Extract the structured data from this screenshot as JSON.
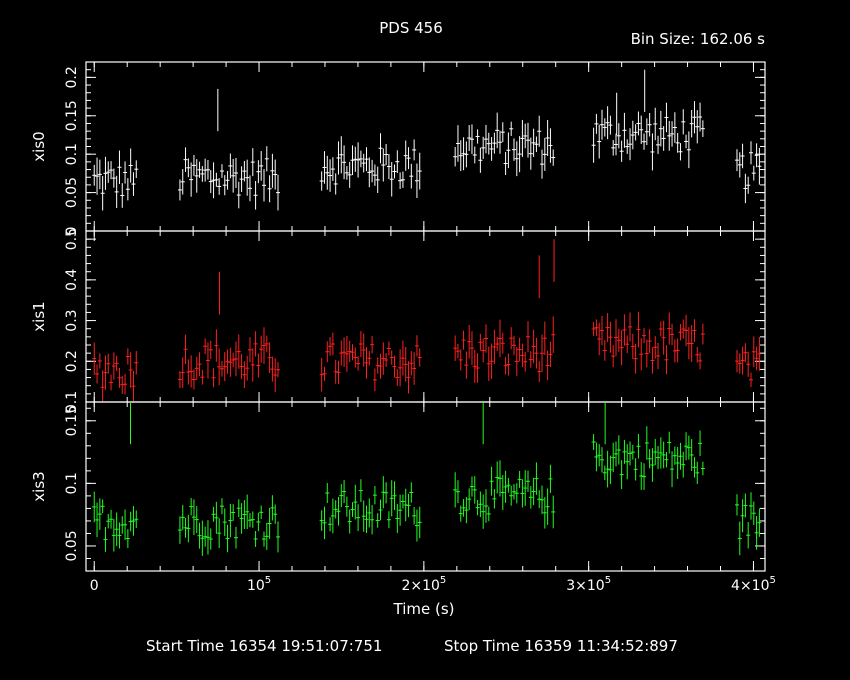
{
  "title": "PDS 456",
  "bin_size": "Bin Size: 162.06 s",
  "start_time": "Start Time 16354 19:51:07:751",
  "stop_time": "Stop Time 16359 11:34:52:897",
  "chart_data": {
    "type": "scatter",
    "style": "error-bar light curve",
    "background": "#000000",
    "x": {
      "label": "Time (s)",
      "range": [
        -5000,
        407000
      ],
      "ticks": [
        {
          "value": 0,
          "label": "0"
        },
        {
          "value": 100000,
          "label": "10^5"
        },
        {
          "value": 200000,
          "label": "2×10^5"
        },
        {
          "value": 300000,
          "label": "3×10^5"
        },
        {
          "value": 400000,
          "label": "4×10^5"
        }
      ]
    },
    "segments": [
      [
        0,
        27000
      ],
      [
        52000,
        113000
      ],
      [
        138000,
        199000
      ],
      [
        219000,
        280000
      ],
      [
        303000,
        370000
      ],
      [
        390000,
        405000
      ]
    ],
    "series": [
      {
        "name": "xis0",
        "color": "#ffffff",
        "ylim": [
          0,
          0.22
        ],
        "ticks": [
          0,
          0.05,
          0.1,
          0.15,
          0.2
        ],
        "tick_labels": [
          "0",
          "0.05",
          "0.1",
          "0.15",
          "0.2"
        ],
        "profile": [
          0.065,
          0.07,
          0.085,
          0.11,
          0.125,
          0.078
        ],
        "spikes": [
          [
            75000,
            0.185
          ],
          [
            334000,
            0.21
          ],
          [
            317000,
            0.18
          ]
        ]
      },
      {
        "name": "xis1",
        "color": "#ff2020",
        "ylim": [
          0.1,
          0.52
        ],
        "ticks": [
          0.1,
          0.2,
          0.3,
          0.4,
          0.5
        ],
        "tick_labels": [
          "0.1",
          "0.2",
          "0.3",
          "0.4",
          "0.5"
        ],
        "profile": [
          0.18,
          0.2,
          0.2,
          0.22,
          0.24,
          0.18
        ],
        "spikes": [
          [
            279000,
            0.5
          ],
          [
            76000,
            0.42
          ],
          [
            270000,
            0.46
          ]
        ]
      },
      {
        "name": "xis3",
        "color": "#20ff20",
        "ylim": [
          0.03,
          0.165
        ],
        "ticks": [
          0.05,
          0.1,
          0.15
        ],
        "tick_labels": [
          "0.05",
          "0.1",
          "0.15"
        ],
        "profile": [
          0.07,
          0.07,
          0.08,
          0.09,
          0.12,
          0.07
        ],
        "spikes": [
          [
            22000,
            0.165
          ],
          [
            236000,
            0.165
          ],
          [
            310000,
            0.165
          ]
        ]
      }
    ]
  }
}
